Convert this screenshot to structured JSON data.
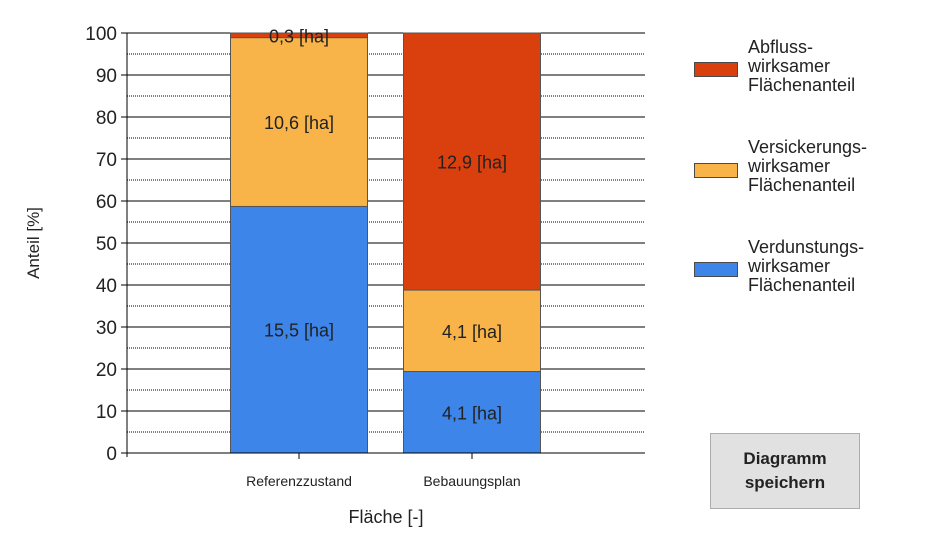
{
  "chart_data": {
    "type": "bar",
    "stacked": true,
    "categories": [
      "Referenzzustand",
      "Bebauungsplan"
    ],
    "xlabel": "Fläche [-]",
    "ylabel": "Anteil [%]",
    "ylim": [
      0,
      100
    ],
    "yticks": [
      0,
      10,
      20,
      30,
      40,
      50,
      60,
      70,
      80,
      90,
      100
    ],
    "grid": true,
    "legend_position": "right",
    "series": [
      {
        "name": "Verdunstungs-\nwirksamer\nFlächenanteil",
        "color": "#3d85e8",
        "values": [
          58.7,
          19.4
        ],
        "labels": [
          "15,5 [ha]",
          "4,1 [ha]"
        ]
      },
      {
        "name": "Versickerungs-\nwirksamer\nFlächenanteil",
        "color": "#f9b449",
        "values": [
          40.2,
          19.4
        ],
        "labels": [
          "10,6 [ha]",
          "4,1 [ha]"
        ]
      },
      {
        "name": "Abfluss-\nwirksamer\nFlächenanteil",
        "color": "#d9400e",
        "values": [
          1.1,
          61.2
        ],
        "labels": [
          "0,3 [ha]",
          "12,9 [ha]"
        ]
      }
    ]
  },
  "legend": {
    "items": [
      {
        "label": "Abfluss-\nwirksamer\nFlächenanteil",
        "color": "#d9400e"
      },
      {
        "label": "Versickerungs-\nwirksamer\nFlächenanteil",
        "color": "#f9b449"
      },
      {
        "label": "Verdunstungs-\nwirksamer\nFlächenanteil",
        "color": "#3d85e8"
      }
    ]
  },
  "save_button": {
    "label": "Diagramm\nspeichern"
  }
}
